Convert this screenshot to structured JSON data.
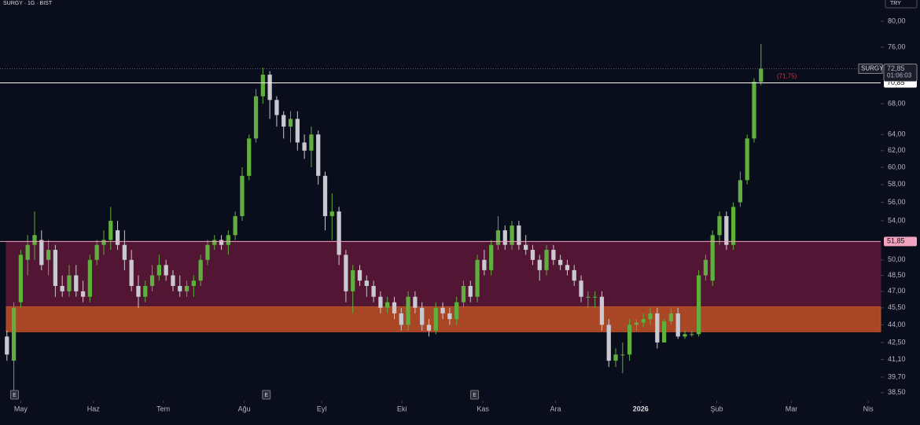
{
  "chart_data": {
    "type": "candlestick",
    "title": "SURGY · 1G · BIST",
    "currency": "TRY",
    "log_scale": true,
    "ylim": [
      37.9,
      83.4
    ],
    "yticks": [
      {
        "value": 80,
        "label": "80,00"
      },
      {
        "value": 76,
        "label": "76,00"
      },
      {
        "value": 68,
        "label": "68,00"
      },
      {
        "value": 64,
        "label": "64,00"
      },
      {
        "value": 62,
        "label": "62,00"
      },
      {
        "value": 60,
        "label": "60,00"
      },
      {
        "value": 58,
        "label": "58,00"
      },
      {
        "value": 56,
        "label": "56,00"
      },
      {
        "value": 54,
        "label": "54,00"
      },
      {
        "value": 50,
        "label": "50,00"
      },
      {
        "value": 48.5,
        "label": "48,50"
      },
      {
        "value": 47,
        "label": "47,00"
      },
      {
        "value": 45.5,
        "label": "45,50"
      },
      {
        "value": 44,
        "label": "44,00"
      },
      {
        "value": 42.5,
        "label": "42,50"
      },
      {
        "value": 41.1,
        "label": "41,10"
      },
      {
        "value": 39.7,
        "label": "39,70"
      },
      {
        "value": 38.5,
        "label": "38,50"
      }
    ],
    "xlim": [
      -1,
      126.3
    ],
    "xticks": [
      {
        "value": 2,
        "label": "May"
      },
      {
        "value": 12.5,
        "label": "Haz"
      },
      {
        "value": 22.6,
        "label": "Tem"
      },
      {
        "value": 34.3,
        "label": "Ağu"
      },
      {
        "value": 45.5,
        "label": "Eyl"
      },
      {
        "value": 57.1,
        "label": "Eki"
      },
      {
        "value": 68.8,
        "label": "Kas"
      },
      {
        "value": 79.3,
        "label": "Ara"
      },
      {
        "value": 91.6,
        "label": "2026"
      },
      {
        "value": 102.6,
        "label": "Şub"
      },
      {
        "value": 113.4,
        "label": "Mar"
      },
      {
        "value": 124.5,
        "label": "Nis"
      }
    ],
    "up_color": "#5fae3e",
    "down_color": "#c9c9d2",
    "open": [
      43,
      41,
      46,
      50,
      51.5,
      52,
      50,
      51,
      47.5,
      47,
      48.5,
      47,
      46.5,
      50,
      51.5,
      52,
      53,
      51.5,
      50,
      47.5,
      46.5,
      47.5,
      48.5,
      49.5,
      48.5,
      47.5,
      47,
      47.5,
      48,
      50,
      51.5,
      52,
      51.5,
      52.5,
      54.5,
      59,
      63.5,
      69,
      72,
      68.5,
      66.5,
      65,
      66,
      63,
      62,
      64,
      59,
      54.5,
      55,
      50.5,
      47,
      49,
      48,
      47.5,
      46.5,
      45.5,
      46,
      45,
      44,
      46.5,
      45.5,
      44,
      43.5,
      45.5,
      45,
      44.5,
      46,
      47.5,
      46.5,
      50,
      49,
      51.5,
      53,
      51.5,
      53.5,
      51.5,
      51,
      50,
      49,
      51,
      50,
      49.5,
      49,
      48,
      46.5,
      46.5,
      46.5,
      44,
      41,
      41.5,
      41.5,
      44,
      44.2,
      44.5,
      45,
      42.5,
      44.3,
      45,
      43,
      43.2,
      43.2,
      48.5,
      48,
      52.5,
      54.5,
      51.5,
      56,
      58.5,
      63.5,
      71
    ],
    "high": [
      43.5,
      46,
      51,
      52.5,
      55,
      53,
      52,
      51.5,
      48.5,
      49.5,
      49.5,
      48,
      50.5,
      52,
      53,
      55.5,
      54,
      53,
      51,
      48.5,
      48,
      49.5,
      50.5,
      50,
      49,
      48.5,
      48,
      48.5,
      50.5,
      52,
      52.5,
      52.5,
      53,
      55,
      60,
      64,
      70,
      73,
      72.5,
      69,
      67,
      67,
      67,
      64,
      65,
      64.5,
      59.5,
      57,
      55.5,
      51,
      49.5,
      49.5,
      48.5,
      48,
      47,
      46.5,
      46.5,
      45.5,
      47,
      47,
      46,
      44.5,
      46,
      46,
      45.5,
      46.5,
      48,
      48,
      50.5,
      51,
      52,
      54.5,
      53.5,
      54,
      54,
      52.5,
      51.5,
      50.5,
      51.5,
      51.5,
      50.5,
      50,
      49.5,
      48.5,
      47,
      47,
      47,
      44.5,
      42,
      42.5,
      44.5,
      44.5,
      45,
      45.5,
      45.5,
      44.5,
      45.5,
      45.5,
      43.5,
      43.5,
      49,
      50.5,
      53,
      55,
      55,
      56,
      59.5,
      64,
      71.5,
      76.5
    ],
    "low": [
      41,
      38.7,
      45.5,
      48.5,
      50,
      49,
      48.5,
      46.5,
      46.5,
      46.5,
      46.5,
      46,
      46,
      49.5,
      50.5,
      51,
      51,
      49,
      47,
      45.5,
      46,
      47,
      48,
      48,
      47,
      46.5,
      46.5,
      46.5,
      47.5,
      49.5,
      51,
      51,
      50.5,
      52,
      54,
      58.5,
      63,
      68,
      66,
      65,
      63.5,
      63,
      62,
      61,
      60,
      58,
      53,
      52,
      49.5,
      46,
      45,
      47.5,
      46.5,
      46,
      45,
      45,
      44.5,
      43.5,
      43.5,
      45,
      43.5,
      43,
      43.2,
      44.5,
      44,
      44,
      45.5,
      46,
      46,
      48.5,
      48.5,
      51,
      51,
      51,
      51,
      50.5,
      49.5,
      48,
      48.5,
      49.5,
      49,
      48.5,
      47.5,
      46,
      45.5,
      45.5,
      43.5,
      40.5,
      40.5,
      40,
      41,
      43.5,
      43.8,
      44,
      42,
      42.5,
      44,
      42.8,
      42.8,
      43,
      43,
      48,
      47.5,
      51.5,
      51,
      51,
      55.5,
      58,
      63,
      70.5
    ],
    "close": [
      41.5,
      45.5,
      50.5,
      51.5,
      52.5,
      49.5,
      51,
      47.5,
      47,
      48.5,
      47,
      46.5,
      50,
      51.5,
      52,
      54,
      51.5,
      50,
      47.5,
      46.5,
      47.5,
      48.5,
      49.5,
      48.5,
      47.5,
      47,
      47.5,
      48,
      50,
      51.5,
      52,
      51.5,
      52.5,
      54.5,
      59,
      63.5,
      69,
      72,
      68.5,
      66.5,
      65,
      66,
      63,
      62,
      64,
      59,
      54.5,
      55,
      50.5,
      47,
      49,
      48,
      47.5,
      46.5,
      45.5,
      46,
      45,
      44,
      46.5,
      45.5,
      44,
      43.5,
      45.5,
      45,
      44.5,
      46,
      47.5,
      46.5,
      50,
      49,
      51.5,
      53,
      51.5,
      53.5,
      51.5,
      51,
      50,
      49,
      51,
      50,
      49.5,
      49,
      48,
      46.5,
      46.5,
      46.5,
      44,
      41,
      41.5,
      41.5,
      44,
      44.2,
      44.5,
      45,
      42.5,
      44.3,
      45,
      43,
      43.2,
      43.2,
      48.5,
      50,
      52.5,
      54.5,
      51.5,
      55.5,
      58.5,
      63.5,
      71,
      72.85
    ],
    "zones": [
      {
        "from": 45.6,
        "to": 51.85,
        "color": "#5a1636"
      },
      {
        "from": 43.4,
        "to": 45.6,
        "color": "#b94d27"
      }
    ],
    "hlines": [
      {
        "value": 70.85,
        "label": "70,85",
        "color": "#ffffff"
      },
      {
        "value": 51.85,
        "label": "51,85",
        "color": "#f2a3bd"
      }
    ],
    "last_price": {
      "value": 72.85,
      "label": "72,85",
      "symbol": "SURGY",
      "countdown": "01:06:03"
    },
    "annotation": {
      "value": 71.75,
      "label": "(71,75)"
    },
    "earnings": [
      {
        "x": 1.1,
        "label": "E"
      },
      {
        "x": 37.5,
        "label": "E"
      },
      {
        "x": 67.6,
        "label": "E"
      }
    ]
  }
}
